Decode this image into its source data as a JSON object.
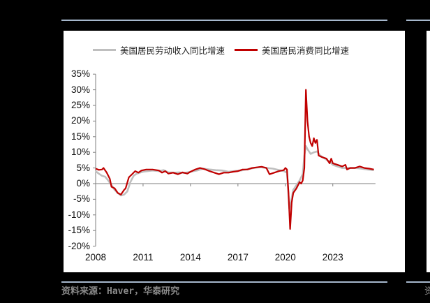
{
  "legend": {
    "series1_label": "美国居民劳动收入同比增速",
    "series2_label": "美国居民消费同比增速"
  },
  "source": "资料来源：Haver，华泰研究",
  "colors": {
    "income": "#bfbfbf",
    "consumption": "#c00000",
    "rule": "#a6b7cc"
  },
  "y_ticks": [
    "35%",
    "30%",
    "25%",
    "20%",
    "15%",
    "10%",
    "5%",
    "0%",
    "-5%",
    "-10%",
    "-15%",
    "-20%"
  ],
  "x_ticks": [
    "2008",
    "2011",
    "2014",
    "2017",
    "2020",
    "2023"
  ],
  "chart_data": {
    "type": "line",
    "title": "",
    "xlabel": "",
    "ylabel": "",
    "ylim": [
      -20,
      35
    ],
    "xlim": [
      2008,
      2025.7
    ],
    "grid": false,
    "legend_position": "top",
    "y_tick_labels": [
      "-20%",
      "-15%",
      "-10%",
      "-5%",
      "0%",
      "5%",
      "10%",
      "15%",
      "20%",
      "25%",
      "30%",
      "35%"
    ],
    "x_tick_labels": [
      "2008",
      "2011",
      "2014",
      "2017",
      "2020",
      "2023"
    ],
    "series": [
      {
        "name": "美国居民劳动收入同比增速",
        "color": "#bfbfbf",
        "points": [
          [
            2008.0,
            4.0
          ],
          [
            2008.2,
            3.2
          ],
          [
            2008.4,
            2.5
          ],
          [
            2008.6,
            2.2
          ],
          [
            2008.8,
            1.0
          ],
          [
            2009.0,
            -0.5
          ],
          [
            2009.2,
            -2.0
          ],
          [
            2009.4,
            -3.0
          ],
          [
            2009.6,
            -3.8
          ],
          [
            2009.8,
            -3.5
          ],
          [
            2010.0,
            -2.5
          ],
          [
            2010.2,
            0.5
          ],
          [
            2010.4,
            2.5
          ],
          [
            2010.6,
            3.2
          ],
          [
            2010.8,
            3.5
          ],
          [
            2011.0,
            3.8
          ],
          [
            2011.3,
            4.0
          ],
          [
            2011.6,
            4.2
          ],
          [
            2012.0,
            4.0
          ],
          [
            2012.3,
            4.3
          ],
          [
            2012.6,
            3.6
          ],
          [
            2013.0,
            3.5
          ],
          [
            2013.3,
            3.6
          ],
          [
            2013.6,
            3.4
          ],
          [
            2014.0,
            3.8
          ],
          [
            2014.4,
            4.2
          ],
          [
            2014.8,
            4.8
          ],
          [
            2015.2,
            4.5
          ],
          [
            2015.6,
            4.3
          ],
          [
            2016.0,
            4.2
          ],
          [
            2016.4,
            3.8
          ],
          [
            2016.8,
            4.0
          ],
          [
            2017.2,
            4.2
          ],
          [
            2017.6,
            4.6
          ],
          [
            2018.0,
            5.0
          ],
          [
            2018.4,
            5.3
          ],
          [
            2018.8,
            5.0
          ],
          [
            2019.2,
            4.8
          ],
          [
            2019.6,
            4.3
          ],
          [
            2019.9,
            4.0
          ],
          [
            2020.1,
            3.5
          ],
          [
            2020.25,
            -8.0
          ],
          [
            2020.35,
            -6.0
          ],
          [
            2020.5,
            -2.0
          ],
          [
            2020.7,
            -0.5
          ],
          [
            2020.9,
            1.0
          ],
          [
            2021.0,
            2.0
          ],
          [
            2021.1,
            3.0
          ],
          [
            2021.2,
            9.0
          ],
          [
            2021.3,
            12.0
          ],
          [
            2021.4,
            11.0
          ],
          [
            2021.6,
            9.5
          ],
          [
            2021.8,
            10.0
          ],
          [
            2022.0,
            10.3
          ],
          [
            2022.2,
            9.0
          ],
          [
            2022.5,
            8.0
          ],
          [
            2022.8,
            7.0
          ],
          [
            2023.0,
            6.0
          ],
          [
            2023.3,
            5.5
          ],
          [
            2023.6,
            5.0
          ],
          [
            2024.0,
            5.0
          ],
          [
            2024.4,
            5.0
          ],
          [
            2024.8,
            4.8
          ],
          [
            2025.2,
            4.5
          ],
          [
            2025.6,
            4.3
          ]
        ]
      },
      {
        "name": "美国居民消费同比增速",
        "color": "#c00000",
        "points": [
          [
            2008.0,
            4.8
          ],
          [
            2008.2,
            4.4
          ],
          [
            2008.4,
            4.5
          ],
          [
            2008.5,
            5.0
          ],
          [
            2008.7,
            3.5
          ],
          [
            2008.9,
            1.5
          ],
          [
            2009.0,
            -1.0
          ],
          [
            2009.2,
            -1.5
          ],
          [
            2009.4,
            -3.0
          ],
          [
            2009.6,
            -3.5
          ],
          [
            2009.8,
            -2.0
          ],
          [
            2009.9,
            -1.5
          ],
          [
            2010.1,
            2.0
          ],
          [
            2010.3,
            3.0
          ],
          [
            2010.5,
            4.0
          ],
          [
            2010.7,
            3.5
          ],
          [
            2010.9,
            4.2
          ],
          [
            2011.2,
            4.5
          ],
          [
            2011.6,
            4.5
          ],
          [
            2012.0,
            4.2
          ],
          [
            2012.2,
            3.5
          ],
          [
            2012.4,
            4.0
          ],
          [
            2012.6,
            3.2
          ],
          [
            2012.9,
            3.5
          ],
          [
            2013.2,
            3.0
          ],
          [
            2013.5,
            3.6
          ],
          [
            2013.8,
            3.2
          ],
          [
            2014.0,
            3.8
          ],
          [
            2014.3,
            4.5
          ],
          [
            2014.6,
            5.0
          ],
          [
            2014.9,
            4.6
          ],
          [
            2015.2,
            4.0
          ],
          [
            2015.5,
            3.5
          ],
          [
            2015.8,
            3.0
          ],
          [
            2016.1,
            3.5
          ],
          [
            2016.4,
            3.5
          ],
          [
            2016.7,
            3.8
          ],
          [
            2017.0,
            4.0
          ],
          [
            2017.3,
            4.5
          ],
          [
            2017.6,
            4.5
          ],
          [
            2017.9,
            5.0
          ],
          [
            2018.2,
            5.2
          ],
          [
            2018.5,
            5.4
          ],
          [
            2018.8,
            5.0
          ],
          [
            2019.0,
            3.0
          ],
          [
            2019.3,
            3.5
          ],
          [
            2019.6,
            4.0
          ],
          [
            2019.9,
            4.3
          ],
          [
            2020.0,
            5.0
          ],
          [
            2020.1,
            4.5
          ],
          [
            2020.2,
            -3.0
          ],
          [
            2020.3,
            -14.5
          ],
          [
            2020.4,
            -6.0
          ],
          [
            2020.5,
            -3.0
          ],
          [
            2020.7,
            -1.5
          ],
          [
            2020.9,
            0.5
          ],
          [
            2021.0,
            0.0
          ],
          [
            2021.1,
            1.0
          ],
          [
            2021.2,
            5.0
          ],
          [
            2021.3,
            30.0
          ],
          [
            2021.4,
            20.0
          ],
          [
            2021.5,
            15.0
          ],
          [
            2021.6,
            13.0
          ],
          [
            2021.7,
            12.0
          ],
          [
            2021.8,
            14.5
          ],
          [
            2021.9,
            13.0
          ],
          [
            2022.0,
            14.0
          ],
          [
            2022.1,
            9.0
          ],
          [
            2022.3,
            8.5
          ],
          [
            2022.6,
            8.0
          ],
          [
            2022.8,
            6.5
          ],
          [
            2022.9,
            8.0
          ],
          [
            2023.0,
            6.5
          ],
          [
            2023.3,
            6.0
          ],
          [
            2023.6,
            5.5
          ],
          [
            2023.8,
            6.0
          ],
          [
            2023.9,
            4.5
          ],
          [
            2024.1,
            5.0
          ],
          [
            2024.4,
            5.0
          ],
          [
            2024.7,
            5.5
          ],
          [
            2025.0,
            5.0
          ],
          [
            2025.3,
            4.8
          ],
          [
            2025.6,
            4.5
          ]
        ]
      }
    ]
  }
}
